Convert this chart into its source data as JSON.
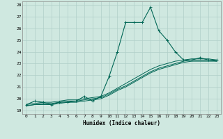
{
  "title": "",
  "xlabel": "Humidex (Indice chaleur)",
  "background_color": "#cfe8e0",
  "grid_color": "#b0cfc8",
  "line_color": "#006655",
  "xlim": [
    -0.5,
    23.5
  ],
  "ylim": [
    18.7,
    28.3
  ],
  "yticks": [
    19,
    20,
    21,
    22,
    23,
    24,
    25,
    26,
    27,
    28
  ],
  "xticks": [
    0,
    1,
    2,
    3,
    4,
    5,
    6,
    7,
    8,
    9,
    10,
    11,
    12,
    13,
    14,
    15,
    16,
    17,
    18,
    19,
    20,
    21,
    22,
    23
  ],
  "line1_x": [
    0,
    1,
    2,
    3,
    4,
    5,
    6,
    7,
    8,
    9,
    10,
    11,
    12,
    13,
    14,
    15,
    16,
    17,
    18,
    19,
    20,
    21,
    22,
    23
  ],
  "line1_y": [
    19.5,
    19.8,
    19.7,
    19.5,
    19.7,
    19.7,
    19.8,
    20.2,
    19.8,
    20.2,
    21.9,
    24.0,
    26.5,
    26.5,
    26.5,
    27.8,
    25.8,
    25.0,
    24.0,
    23.3,
    23.3,
    23.5,
    23.3,
    23.3
  ],
  "line2_x": [
    0,
    1,
    2,
    3,
    4,
    5,
    6,
    7,
    8,
    9,
    10,
    11,
    12,
    13,
    14,
    15,
    16,
    17,
    18,
    19,
    20,
    21,
    22,
    23
  ],
  "line2_y": [
    19.5,
    19.6,
    19.7,
    19.7,
    19.8,
    19.9,
    19.9,
    20.0,
    20.1,
    20.2,
    20.5,
    20.9,
    21.3,
    21.7,
    22.1,
    22.5,
    22.8,
    23.0,
    23.2,
    23.3,
    23.4,
    23.4,
    23.4,
    23.3
  ],
  "line3_x": [
    0,
    1,
    2,
    3,
    4,
    5,
    6,
    7,
    8,
    9,
    10,
    11,
    12,
    13,
    14,
    15,
    16,
    17,
    18,
    19,
    20,
    21,
    22,
    23
  ],
  "line3_y": [
    19.4,
    19.5,
    19.6,
    19.6,
    19.7,
    19.8,
    19.8,
    19.9,
    20.0,
    20.1,
    20.4,
    20.8,
    21.1,
    21.5,
    21.9,
    22.3,
    22.6,
    22.8,
    23.0,
    23.2,
    23.3,
    23.3,
    23.3,
    23.2
  ],
  "line4_x": [
    0,
    1,
    2,
    3,
    4,
    5,
    6,
    7,
    8,
    9,
    10,
    11,
    12,
    13,
    14,
    15,
    16,
    17,
    18,
    19,
    20,
    21,
    22,
    23
  ],
  "line4_y": [
    19.4,
    19.5,
    19.5,
    19.5,
    19.6,
    19.7,
    19.7,
    19.8,
    19.9,
    20.0,
    20.3,
    20.7,
    21.0,
    21.4,
    21.8,
    22.2,
    22.5,
    22.7,
    22.9,
    23.1,
    23.2,
    23.2,
    23.2,
    23.2
  ]
}
